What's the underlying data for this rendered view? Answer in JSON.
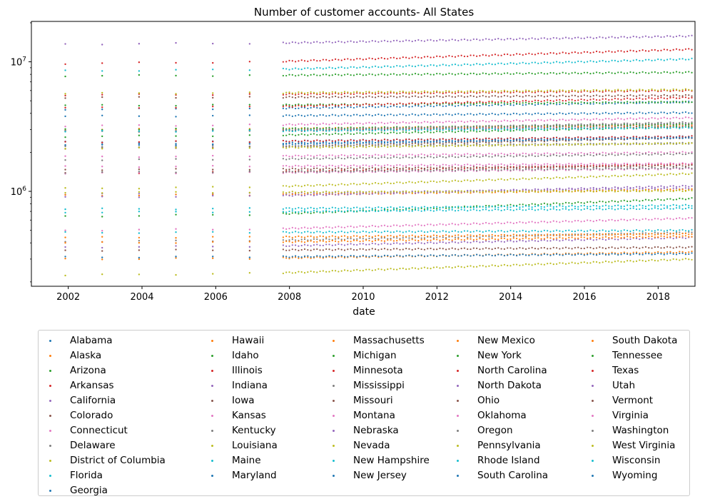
{
  "chart_data": {
    "type": "scatter",
    "title": "Number of customer accounts- All States",
    "xlabel": "date",
    "ylabel": "",
    "yscale": "log",
    "xlim": [
      2001.0,
      2019.0
    ],
    "ylim": [
      185000,
      20500000
    ],
    "x_ticks": [
      2002,
      2004,
      2006,
      2008,
      2010,
      2012,
      2014,
      2016,
      2018
    ],
    "y_ticks": [
      {
        "value": 1000000,
        "base": "10",
        "exp": "6"
      },
      {
        "value": 10000000,
        "base": "10",
        "exp": "7"
      }
    ],
    "annual_dates": [
      2001.92,
      2002.92,
      2003.92,
      2004.92,
      2005.92,
      2006.92
    ],
    "monthly_start": 2007.83,
    "monthly_end": 2018.92,
    "legend": "lower center, outside plot, 5 columns",
    "grid": false,
    "series": [
      {
        "name": "Alabama",
        "color": "#1f77b4",
        "start": 2270000,
        "end": 2600000
      },
      {
        "name": "Alaska",
        "color": "#ff7f0e",
        "start": 300000,
        "end": 340000
      },
      {
        "name": "Arizona",
        "color": "#2ca02c",
        "start": 2650000,
        "end": 3150000
      },
      {
        "name": "Arkansas",
        "color": "#d62728",
        "start": 1380000,
        "end": 1620000
      },
      {
        "name": "California",
        "color": "#9467bd",
        "start": 13700000,
        "end": 15800000
      },
      {
        "name": "Colorado",
        "color": "#8c564b",
        "start": 2150000,
        "end": 2600000
      },
      {
        "name": "Connecticut",
        "color": "#e377c2",
        "start": 1550000,
        "end": 1640000
      },
      {
        "name": "Delaware",
        "color": "#7f7f7f",
        "start": 410000,
        "end": 480000
      },
      {
        "name": "District of Columbia",
        "color": "#bcbd22",
        "start": 225000,
        "end": 300000
      },
      {
        "name": "Florida",
        "color": "#17becf",
        "start": 8500000,
        "end": 10500000
      },
      {
        "name": "Georgia",
        "color": "#1f77b4",
        "start": 4300000,
        "end": 4900000
      },
      {
        "name": "Hawaii",
        "color": "#ff7f0e",
        "start": 440000,
        "end": 470000
      },
      {
        "name": "Idaho",
        "color": "#2ca02c",
        "start": 640000,
        "end": 880000
      },
      {
        "name": "Illinois",
        "color": "#d62728",
        "start": 5550000,
        "end": 6000000
      },
      {
        "name": "Indiana",
        "color": "#9467bd",
        "start": 2900000,
        "end": 3300000
      },
      {
        "name": "Iowa",
        "color": "#8c564b",
        "start": 1470000,
        "end": 1580000
      },
      {
        "name": "Kansas",
        "color": "#e377c2",
        "start": 1380000,
        "end": 1500000
      },
      {
        "name": "Kentucky",
        "color": "#7f7f7f",
        "start": 2200000,
        "end": 2350000
      },
      {
        "name": "Louisiana",
        "color": "#bcbd22",
        "start": 2150000,
        "end": 2350000
      },
      {
        "name": "Maine",
        "color": "#17becf",
        "start": 730000,
        "end": 780000
      },
      {
        "name": "Maryland",
        "color": "#1f77b4",
        "start": 2400000,
        "end": 2650000
      },
      {
        "name": "Massachusetts",
        "color": "#ff7f0e",
        "start": 3000000,
        "end": 3250000
      },
      {
        "name": "Michigan",
        "color": "#2ca02c",
        "start": 4600000,
        "end": 4900000
      },
      {
        "name": "Minnesota",
        "color": "#d62728",
        "start": 2400000,
        "end": 2650000
      },
      {
        "name": "Mississippi",
        "color": "#7f7f7f",
        "start": 1400000,
        "end": 1520000
      },
      {
        "name": "Missouri",
        "color": "#8c564b",
        "start": 2900000,
        "end": 3150000
      },
      {
        "name": "Montana",
        "color": "#e377c2",
        "start": 500000,
        "end": 620000
      },
      {
        "name": "Nebraska",
        "color": "#9467bd",
        "start": 950000,
        "end": 1050000
      },
      {
        "name": "Nevada",
        "color": "#bcbd22",
        "start": 1050000,
        "end": 1370000
      },
      {
        "name": "New Hampshire",
        "color": "#17becf",
        "start": 690000,
        "end": 740000
      },
      {
        "name": "New Jersey",
        "color": "#1f77b4",
        "start": 3800000,
        "end": 4050000
      },
      {
        "name": "New Mexico",
        "color": "#ff7f0e",
        "start": 930000,
        "end": 1030000
      },
      {
        "name": "New York",
        "color": "#2ca02c",
        "start": 7800000,
        "end": 8300000
      },
      {
        "name": "North Carolina",
        "color": "#d62728",
        "start": 4400000,
        "end": 5300000
      },
      {
        "name": "North Dakota",
        "color": "#9467bd",
        "start": 370000,
        "end": 440000
      },
      {
        "name": "Ohio",
        "color": "#8c564b",
        "start": 5300000,
        "end": 5500000
      },
      {
        "name": "Oklahoma",
        "color": "#e377c2",
        "start": 1850000,
        "end": 2000000
      },
      {
        "name": "Oregon",
        "color": "#7f7f7f",
        "start": 1750000,
        "end": 1950000
      },
      {
        "name": "Pennsylvania",
        "color": "#bcbd22",
        "start": 5700000,
        "end": 6100000
      },
      {
        "name": "Rhode Island",
        "color": "#17becf",
        "start": 480000,
        "end": 500000
      },
      {
        "name": "South Carolina",
        "color": "#1f77b4",
        "start": 2300000,
        "end": 2600000
      },
      {
        "name": "South Dakota",
        "color": "#ff7f0e",
        "start": 400000,
        "end": 450000
      },
      {
        "name": "Tennessee",
        "color": "#2ca02c",
        "start": 3000000,
        "end": 3300000
      },
      {
        "name": "Texas",
        "color": "#d62728",
        "start": 9700000,
        "end": 12500000
      },
      {
        "name": "Utah",
        "color": "#9467bd",
        "start": 900000,
        "end": 1100000
      },
      {
        "name": "Vermont",
        "color": "#8c564b",
        "start": 350000,
        "end": 370000
      },
      {
        "name": "Virginia",
        "color": "#e377c2",
        "start": 3200000,
        "end": 3700000
      },
      {
        "name": "Washington",
        "color": "#7f7f7f",
        "start": 2900000,
        "end": 3400000
      },
      {
        "name": "West Virginia",
        "color": "#bcbd22",
        "start": 980000,
        "end": 1010000
      },
      {
        "name": "Wisconsin",
        "color": "#17becf",
        "start": 2900000,
        "end": 3100000
      },
      {
        "name": "Wyoming",
        "color": "#1f77b4",
        "start": 310000,
        "end": 330000
      }
    ]
  }
}
